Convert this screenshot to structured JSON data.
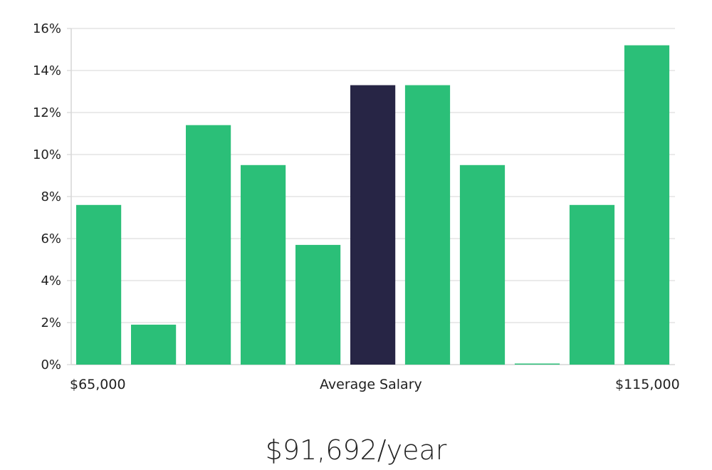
{
  "chart_data": {
    "type": "bar",
    "yunit": "%",
    "ylim": [
      0,
      16
    ],
    "yticks": [
      0,
      2,
      4,
      6,
      8,
      10,
      12,
      14,
      16
    ],
    "values": [
      7.6,
      1.9,
      11.4,
      9.5,
      5.7,
      13.3,
      13.3,
      9.5,
      0,
      7.6,
      15.2
    ],
    "highlight_index": 5,
    "x_min_label": "$65,000",
    "x_mid_label": "Average Salary",
    "x_max_label": "$115,000",
    "grid": true
  },
  "colors": {
    "bar": "#2bbf78",
    "highlight": "#272545",
    "grid": "#e3e3e3"
  },
  "average_salary": "$91,692/year"
}
